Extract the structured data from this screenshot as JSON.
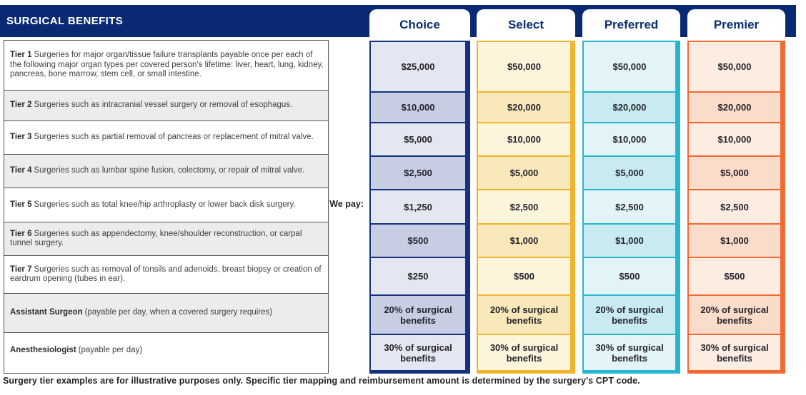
{
  "header": {
    "title": "SURGICAL BENEFITS"
  },
  "we_pay_label": "We pay:",
  "plans": [
    {
      "id": "choice",
      "label": "Choice",
      "accent_color": "#14317f",
      "cell_light": "#e4e7f1",
      "cell_dark": "#c7cee3"
    },
    {
      "id": "select",
      "label": "Select",
      "accent_color": "#f0b42d",
      "cell_light": "#fcf5dc",
      "cell_dark": "#f9e9ba"
    },
    {
      "id": "preferred",
      "label": "Preferred",
      "accent_color": "#27b6cf",
      "cell_light": "#e2f4f8",
      "cell_dark": "#c8ebf2"
    },
    {
      "id": "premier",
      "label": "Premier",
      "accent_color": "#f26a32",
      "cell_light": "#fdece2",
      "cell_dark": "#fbdbc9"
    }
  ],
  "rows": [
    {
      "title": "Tier 1",
      "description": "Surgeries for major organ/tissue failure transplants payable once per each of the following major organ types per covered person's lifetime: liver, heart, lung, kidney, pancreas, bone marrow, stem cell, or small intestine.",
      "values": [
        "$25,000",
        "$50,000",
        "$50,000",
        "$50,000"
      ]
    },
    {
      "title": "Tier 2",
      "description": "Surgeries such as intracranial vessel surgery or removal of esophagus.",
      "values": [
        "$10,000",
        "$20,000",
        "$20,000",
        "$20,000"
      ]
    },
    {
      "title": "Tier 3",
      "description": "Surgeries such as partial removal of pancreas or replacement of mitral valve.",
      "values": [
        "$5,000",
        "$10,000",
        "$10,000",
        "$10,000"
      ]
    },
    {
      "title": "Tier 4",
      "description": "Surgeries such as lumbar spine fusion, colectomy, or repair of mitral valve.",
      "values": [
        "$2,500",
        "$5,000",
        "$5,000",
        "$5,000"
      ]
    },
    {
      "title": "Tier 5",
      "description": "Surgeries such as total knee/hip arthroplasty or lower back disk surgery.",
      "values": [
        "$1,250",
        "$2,500",
        "$2,500",
        "$2,500"
      ]
    },
    {
      "title": "Tier 6",
      "description": "Surgeries such as appendectomy, knee/shoulder reconstruction, or carpal tunnel surgery.",
      "values": [
        "$500",
        "$1,000",
        "$1,000",
        "$1,000"
      ]
    },
    {
      "title": "Tier 7",
      "description": "Surgeries such as removal of tonsils and adenoids, breast biopsy or creation of eardrum opening (tubes in ear).",
      "values": [
        "$250",
        "$500",
        "$500",
        "$500"
      ]
    },
    {
      "title": "Assistant Surgeon",
      "description": "(payable per day, when a covered surgery requires)",
      "values": [
        "20% of surgical benefits",
        "20% of surgical benefits",
        "20% of surgical benefits",
        "20% of surgical benefits"
      ]
    },
    {
      "title": "Anesthesiologist",
      "description": "(payable per day)",
      "values": [
        "30% of surgical benefits",
        "30% of surgical benefits",
        "30% of surgical benefits",
        "30% of surgical benefits"
      ]
    }
  ],
  "footer": {
    "note": "Surgery tier examples are for illustrative purposes only.  Specific tier mapping and reimbursement amount is determined by the surgery's CPT code."
  }
}
